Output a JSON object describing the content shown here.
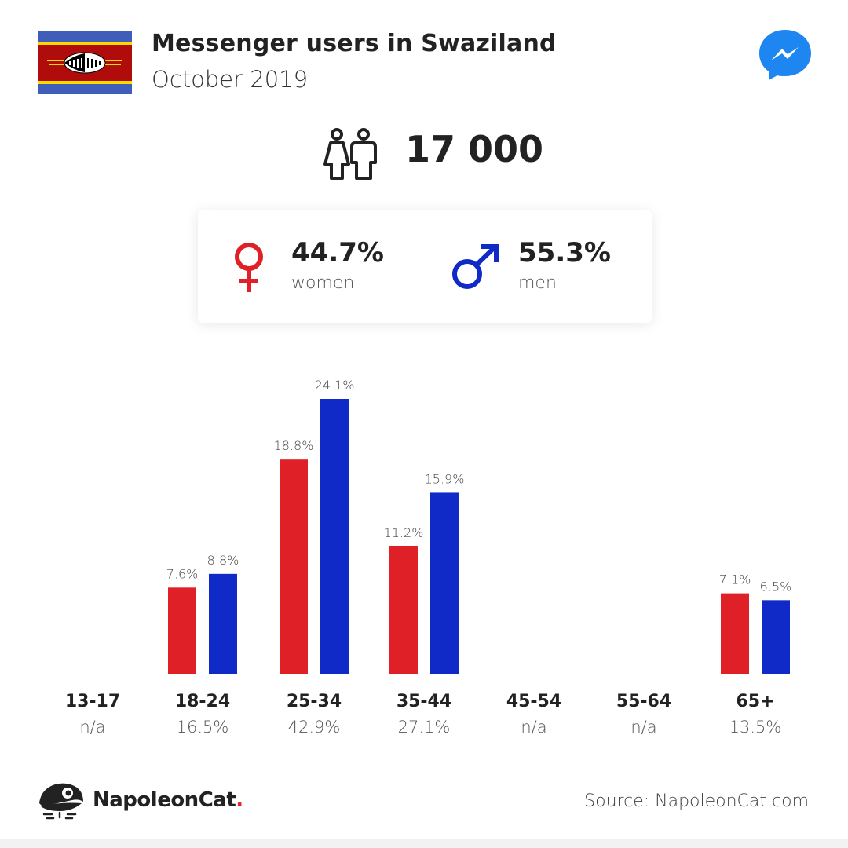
{
  "header": {
    "title": "Messenger users in Swaziland",
    "subtitle": "October 2019"
  },
  "icons": {
    "flag": "swaziland-flag-icon",
    "messenger": "messenger-logo-icon",
    "people": "people-icon",
    "female": "female-symbol-icon",
    "male": "male-symbol-icon",
    "brand": "napoleoncat-logo-icon"
  },
  "total": "17 000",
  "gender": {
    "women_pct": "44.7%",
    "women_label": "women",
    "men_pct": "55.3%",
    "men_label": "men"
  },
  "colors": {
    "women": "#df2027",
    "men": "#0f2ac6"
  },
  "chart_data": {
    "type": "bar",
    "categories": [
      "13-17",
      "18-24",
      "25-34",
      "35-44",
      "45-54",
      "55-64",
      "65+"
    ],
    "category_totals": [
      "n/a",
      "16.5%",
      "42.9%",
      "27.1%",
      "n/a",
      "n/a",
      "13.5%"
    ],
    "series": [
      {
        "color": "#df2027",
        "values": [
          null,
          7.6,
          18.8,
          11.2,
          null,
          null,
          7.1
        ],
        "labels": [
          "",
          "7.6%",
          "18.8%",
          "11.2%",
          "",
          "",
          "7.1%"
        ]
      },
      {
        "color": "#0f2ac6",
        "values": [
          null,
          8.8,
          24.1,
          15.9,
          null,
          null,
          6.5
        ],
        "labels": [
          "",
          "8.8%",
          "24.1%",
          "15.9%",
          "",
          "",
          "6.5%"
        ]
      }
    ],
    "ylim": [
      0,
      24.1
    ],
    "grid": false
  },
  "footer": {
    "brand_name": "NapoleonCat",
    "brand_dot": ".",
    "source": "Source: NapoleonCat.com"
  }
}
